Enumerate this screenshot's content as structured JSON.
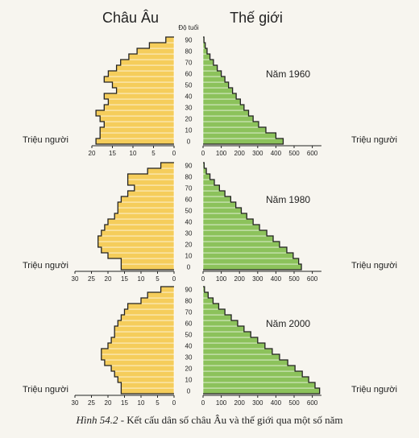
{
  "caption": {
    "label": "Hình 54.2",
    "text": " - Kết cấu dân số châu Âu và thế giới qua một số năm"
  },
  "colors": {
    "europe": "#f5cd5b",
    "world": "#8cc25b",
    "outline": "#222222"
  },
  "chart_data": {
    "type": "bar",
    "subtype": "population-pyramid",
    "left_title": "Châu Âu",
    "right_title": "Thế giới",
    "age_axis_label": "Độ tuổi",
    "unit_label": "Triệu người",
    "ages": [
      "0",
      "",
      "10",
      "",
      "20",
      "",
      "30",
      "",
      "40",
      "",
      "50",
      "",
      "60",
      "",
      "70",
      "",
      "80",
      "",
      "90"
    ],
    "pyramids": [
      {
        "year_label": "Năm",
        "year": "1960",
        "europe_xlim": [
          0,
          20
        ],
        "europe_ticks": [
          "20",
          "15",
          "10",
          "5",
          "0"
        ],
        "world_xlim": [
          0,
          650
        ],
        "world_ticks": [
          "0",
          "100",
          "200",
          "300",
          "400",
          "500",
          "600"
        ],
        "europe": [
          19,
          18,
          18,
          17,
          18,
          19,
          17,
          16,
          17,
          14,
          15,
          17,
          16,
          14,
          13,
          11,
          9,
          6,
          2
        ],
        "world": [
          440,
          400,
          345,
          305,
          275,
          250,
          225,
          205,
          182,
          162,
          140,
          120,
          100,
          78,
          57,
          38,
          22,
          12,
          5
        ]
      },
      {
        "year_label": "Năm",
        "year": "1980",
        "europe_xlim": [
          0,
          30
        ],
        "europe_ticks": [
          "30",
          "25",
          "20",
          "15",
          "10",
          "5",
          "0"
        ],
        "world_xlim": [
          0,
          650
        ],
        "world_ticks": [
          "0",
          "100",
          "200",
          "300",
          "400",
          "500",
          "600"
        ],
        "europe": [
          16,
          16,
          20,
          22,
          23,
          23,
          22,
          21,
          20,
          18,
          17,
          17,
          16,
          14,
          12,
          14,
          14,
          8,
          4
        ],
        "world": [
          540,
          525,
          495,
          460,
          420,
          385,
          350,
          310,
          275,
          240,
          210,
          180,
          152,
          120,
          90,
          62,
          38,
          18,
          6
        ]
      },
      {
        "year_label": "Năm",
        "year": "2000",
        "europe_xlim": [
          0,
          30
        ],
        "europe_ticks": [
          "30",
          "25",
          "20",
          "15",
          "10",
          "5",
          "0"
        ],
        "world_xlim": [
          0,
          650
        ],
        "world_ticks": [
          "0",
          "100",
          "200",
          "300",
          "400",
          "500",
          "600"
        ],
        "europe": [
          16,
          16,
          17,
          18,
          19,
          21,
          22,
          22,
          20,
          19,
          18,
          18,
          17,
          16,
          15,
          14,
          10,
          8,
          4
        ],
        "world": [
          640,
          615,
          580,
          545,
          505,
          465,
          420,
          380,
          340,
          300,
          262,
          225,
          190,
          155,
          120,
          86,
          55,
          28,
          8
        ]
      }
    ]
  }
}
